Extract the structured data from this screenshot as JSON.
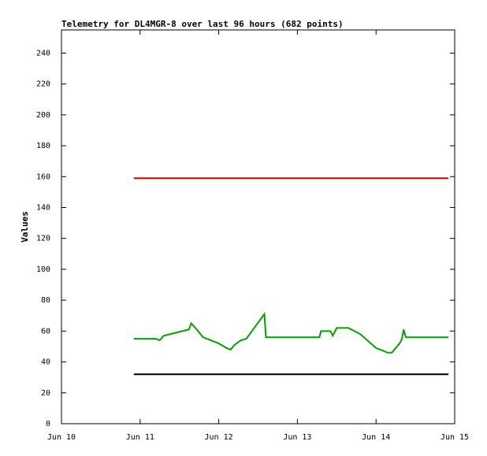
{
  "chart_data": {
    "type": "line",
    "title": "Telemetry for DL4MGR-8 over last 96 hours (682 points)",
    "ylabel": "Values",
    "xlim": [
      10,
      15
    ],
    "xticks": [
      {
        "value": 10,
        "label": "Jun 10"
      },
      {
        "value": 11,
        "label": "Jun 11"
      },
      {
        "value": 12,
        "label": "Jun 12"
      },
      {
        "value": 13,
        "label": "Jun 13"
      },
      {
        "value": 14,
        "label": "Jun 14"
      },
      {
        "value": 15,
        "label": "Jun 15"
      }
    ],
    "ylim": [
      0,
      255
    ],
    "yticks": [
      0,
      20,
      40,
      60,
      80,
      100,
      120,
      140,
      160,
      180,
      200,
      220,
      240
    ],
    "series": [
      {
        "color": "#dd0000",
        "x": [
          10.92,
          14.92
        ],
        "values": [
          159,
          159
        ]
      },
      {
        "color": "#000000",
        "x": [
          10.92,
          14.92
        ],
        "values": [
          32,
          32
        ]
      },
      {
        "color": "#00a000",
        "x": [
          10.92,
          11.2,
          11.25,
          11.3,
          11.62,
          11.65,
          11.72,
          11.8,
          12.0,
          12.1,
          12.15,
          12.2,
          12.28,
          12.35,
          12.58,
          12.6,
          12.7,
          13.0,
          13.28,
          13.3,
          13.42,
          13.45,
          13.5,
          13.65,
          13.8,
          14.0,
          14.15,
          14.2,
          14.3,
          14.33,
          14.35,
          14.38,
          14.5,
          14.92
        ],
        "values": [
          55,
          55,
          54,
          57,
          61,
          65,
          61,
          56,
          52,
          49,
          48,
          51,
          54,
          55,
          71,
          56,
          56,
          56,
          56,
          60,
          60,
          57,
          62,
          62,
          58,
          49,
          46,
          46,
          52,
          55,
          61,
          56,
          56,
          56
        ]
      }
    ]
  }
}
